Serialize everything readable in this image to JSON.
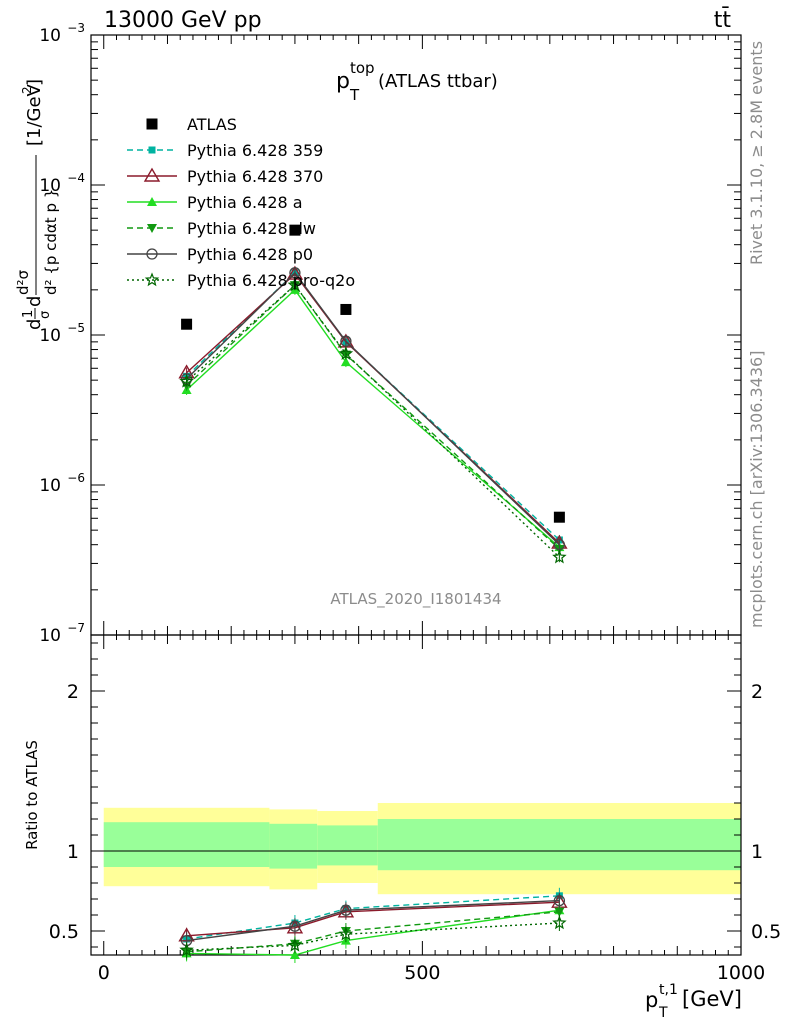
{
  "header": {
    "left": "13000 GeV pp",
    "right": "tt̄"
  },
  "side_labels": {
    "rivet": "Rivet 3.1.10, ≥ 2.8M events",
    "mcplots": "mcplots.cern.ch [arXiv:1306.3436]"
  },
  "watermark": "ATLAS_2020_I1801434",
  "colors": {
    "band_outer": "#ffff99",
    "band_inner": "#99ff99"
  },
  "chart_data": [
    {
      "type": "line",
      "panel": "main",
      "title": "p_T^top (ATLAS ttbar)",
      "title_parts": {
        "main": "p",
        "sup": "top",
        "sub": "T",
        "rest": "(ATLAS ttbar)"
      },
      "ylabel": "d²σ/d²{p_T^t,1 cdαt p_T^t,2} [1/GeV²]",
      "ylabel_parts": {
        "frac_num": "1",
        "frac_den": "σ",
        "d": "d",
        "unit": "[1/GeV",
        "unit_sup": "2",
        "unit_close": "]"
      },
      "yscale": "log",
      "ylim": [
        1e-07,
        0.001
      ],
      "xlim": [
        -20,
        1000
      ],
      "y_ticks": [
        {
          "value": 1e-07,
          "base": "10",
          "exp": "−7"
        },
        {
          "value": 1e-06,
          "base": "10",
          "exp": "−6"
        },
        {
          "value": 1e-05,
          "base": "10",
          "exp": "−5"
        },
        {
          "value": 0.0001,
          "base": "10",
          "exp": "−4"
        },
        {
          "value": 0.001,
          "base": "10",
          "exp": "−3"
        }
      ],
      "legend_position": "top-left",
      "x": [
        130,
        300,
        380,
        715
      ],
      "atlas": [
        1.18e-05,
        5e-05,
        1.48e-05,
        6.1e-07
      ],
      "series": [
        {
          "name": "ATLAS",
          "color": "#000000",
          "marker": "square",
          "line": "none",
          "values": [
            1.18e-05,
            5e-05,
            1.48e-05,
            6.1e-07
          ]
        },
        {
          "name": "Pythia 6.428 359",
          "color": "#00b3a0",
          "marker": "small-square",
          "line": "dashed",
          "values": [
            5.3e-06,
            2.6e-05,
            9e-06,
            4.3e-07
          ]
        },
        {
          "name": "Pythia 6.428 370",
          "color": "#8b1a2b",
          "marker": "open-triangle",
          "line": "solid",
          "values": [
            5.6e-06,
            2.55e-05,
            9e-06,
            4.1e-07
          ]
        },
        {
          "name": "Pythia 6.428 a",
          "color": "#22dd22",
          "marker": "triangle",
          "line": "solid",
          "values": [
            4.3e-06,
            2e-05,
            6.6e-06,
            3.85e-07
          ]
        },
        {
          "name": "Pythia 6.428 dw",
          "color": "#119911",
          "marker": "triangle-down",
          "line": "dashed",
          "values": [
            4.6e-06,
            2.15e-05,
            7.4e-06,
            3.75e-07
          ]
        },
        {
          "name": "Pythia 6.428 p0",
          "color": "#444444",
          "marker": "open-circle",
          "line": "solid",
          "values": [
            5.1e-06,
            2.6e-05,
            9.1e-06,
            4e-07
          ]
        },
        {
          "name": "Pythia 6.428 pro-q2o",
          "color": "#006600",
          "marker": "star",
          "line": "dotted",
          "values": [
            4.9e-06,
            2.15e-05,
            7.5e-06,
            3.3e-07
          ]
        }
      ]
    },
    {
      "type": "line",
      "panel": "ratio",
      "ylabel": "Ratio to ATLAS",
      "xlabel": "p_T^t,1 [GeV]",
      "xlabel_parts": {
        "main": "p",
        "sub": "T",
        "sup": "t,1",
        "unit": "[GeV]"
      },
      "xlim": [
        -20,
        1000
      ],
      "ylim": [
        0.35,
        2.35
      ],
      "x_ticks": [
        {
          "value": 0,
          "label": "0"
        },
        {
          "value": 500,
          "label": "500"
        },
        {
          "value": 1000,
          "label": "1000"
        }
      ],
      "y_ticks": [
        {
          "value": 0.5,
          "label": "0.5"
        },
        {
          "value": 1,
          "label": "1"
        },
        {
          "value": 2,
          "label": "2"
        }
      ],
      "bands": [
        {
          "x0": 0,
          "x1": 260,
          "inner": [
            0.9,
            1.18
          ],
          "outer": [
            0.78,
            1.27
          ]
        },
        {
          "x0": 260,
          "x1": 335,
          "inner": [
            0.89,
            1.17
          ],
          "outer": [
            0.76,
            1.26
          ]
        },
        {
          "x0": 335,
          "x1": 430,
          "inner": [
            0.91,
            1.16
          ],
          "outer": [
            0.8,
            1.25
          ]
        },
        {
          "x0": 430,
          "x1": 1000,
          "inner": [
            0.88,
            1.2
          ],
          "outer": [
            0.73,
            1.3
          ]
        }
      ],
      "x": [
        130,
        300,
        380,
        715
      ],
      "series": [
        {
          "name": "Pythia 6.428 359",
          "values": [
            0.45,
            0.55,
            0.64,
            0.72
          ]
        },
        {
          "name": "Pythia 6.428 370",
          "values": [
            0.47,
            0.52,
            0.62,
            0.68
          ]
        },
        {
          "name": "Pythia 6.428 a",
          "values": [
            0.36,
            0.35,
            0.44,
            0.63
          ]
        },
        {
          "name": "Pythia 6.428 dw",
          "values": [
            0.37,
            0.42,
            0.5,
            0.62
          ]
        },
        {
          "name": "Pythia 6.428 p0",
          "values": [
            0.44,
            0.53,
            0.63,
            0.69
          ]
        },
        {
          "name": "Pythia 6.428 pro-q2o",
          "values": [
            0.38,
            0.41,
            0.48,
            0.55
          ]
        }
      ]
    }
  ]
}
